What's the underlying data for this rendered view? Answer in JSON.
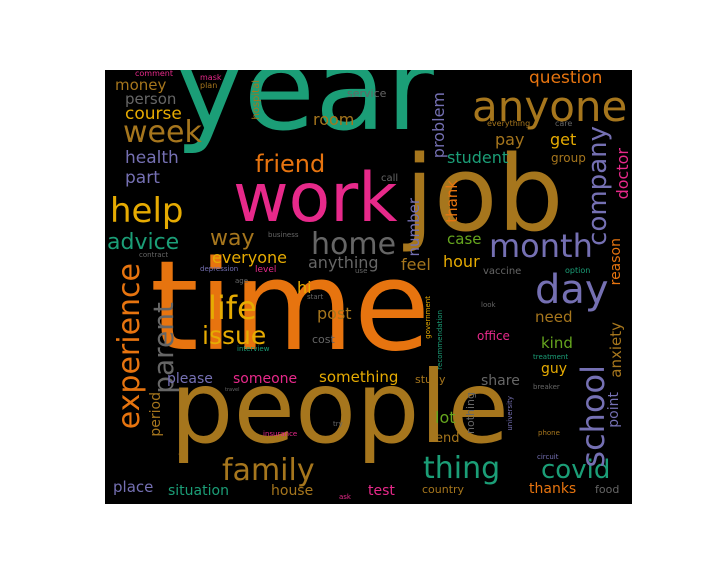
{
  "palette": {
    "orange": "#e7740f",
    "green": "#1b9e77",
    "pink": "#e7298a",
    "purple": "#7570b3",
    "gold": "#e6ab02",
    "olive": "#66a61e",
    "brown": "#a6761d",
    "grey": "#666666",
    "background": "#000000"
  },
  "words": [
    {
      "text": "time",
      "color": "#e7740f"
    },
    {
      "text": "year",
      "color": "#1b9e77"
    },
    {
      "text": "people",
      "color": "#a6761d"
    },
    {
      "text": "job",
      "color": "#a6761d"
    },
    {
      "text": "work",
      "color": "#e7298a"
    },
    {
      "text": "anyone",
      "color": "#a6761d"
    },
    {
      "text": "week",
      "color": "#a6761d"
    },
    {
      "text": "help",
      "color": "#e6ab02"
    },
    {
      "text": "home",
      "color": "#666666"
    },
    {
      "text": "month",
      "color": "#7570b3"
    },
    {
      "text": "day",
      "color": "#7570b3"
    },
    {
      "text": "life",
      "color": "#e6ab02"
    },
    {
      "text": "issue",
      "color": "#e6ab02"
    },
    {
      "text": "friend",
      "color": "#e7740f"
    },
    {
      "text": "family",
      "color": "#a6761d"
    },
    {
      "text": "thing",
      "color": "#1b9e77"
    },
    {
      "text": "covid",
      "color": "#1b9e77"
    },
    {
      "text": "experience",
      "color": "#e7740f"
    },
    {
      "text": "parent",
      "color": "#666666"
    },
    {
      "text": "school",
      "color": "#7570b3"
    },
    {
      "text": "company",
      "color": "#7570b3"
    },
    {
      "text": "advice",
      "color": "#1b9e77"
    },
    {
      "text": "way",
      "color": "#a6761d"
    },
    {
      "text": "question",
      "color": "#e7740f"
    },
    {
      "text": "course",
      "color": "#e6ab02"
    },
    {
      "text": "money",
      "color": "#a6761d"
    },
    {
      "text": "person",
      "color": "#666666"
    },
    {
      "text": "health",
      "color": "#7570b3"
    },
    {
      "text": "part",
      "color": "#7570b3"
    },
    {
      "text": "room",
      "color": "#a6761d"
    },
    {
      "text": "student",
      "color": "#1b9e77"
    },
    {
      "text": "pay",
      "color": "#a6761d"
    },
    {
      "text": "get",
      "color": "#e6ab02"
    },
    {
      "text": "doctor",
      "color": "#e7298a"
    },
    {
      "text": "group",
      "color": "#a6761d"
    },
    {
      "text": "problem",
      "color": "#7570b3"
    },
    {
      "text": "number",
      "color": "#7570b3"
    },
    {
      "text": "thank",
      "color": "#e7740f"
    },
    {
      "text": "case",
      "color": "#66a61e"
    },
    {
      "text": "hour",
      "color": "#e6ab02"
    },
    {
      "text": "feel",
      "color": "#a6761d"
    },
    {
      "text": "everyone",
      "color": "#e6ab02"
    },
    {
      "text": "anything",
      "color": "#666666"
    },
    {
      "text": "hi",
      "color": "#e6ab02"
    },
    {
      "text": "post",
      "color": "#a6761d"
    },
    {
      "text": "need",
      "color": "#a6761d"
    },
    {
      "text": "kind",
      "color": "#66a61e"
    },
    {
      "text": "guy",
      "color": "#e6ab02"
    },
    {
      "text": "reason",
      "color": "#e7740f"
    },
    {
      "text": "anxiety",
      "color": "#a6761d"
    },
    {
      "text": "point",
      "color": "#7570b3"
    },
    {
      "text": "please",
      "color": "#7570b3"
    },
    {
      "text": "someone",
      "color": "#e7298a"
    },
    {
      "text": "something",
      "color": "#e6ab02"
    },
    {
      "text": "share",
      "color": "#666666"
    },
    {
      "text": "lot",
      "color": "#66a61e"
    },
    {
      "text": "end",
      "color": "#a6761d"
    },
    {
      "text": "period",
      "color": "#a6761d"
    },
    {
      "text": "place",
      "color": "#7570b3"
    },
    {
      "text": "situation",
      "color": "#1b9e77"
    },
    {
      "text": "house",
      "color": "#a6761d"
    },
    {
      "text": "test",
      "color": "#e7298a"
    },
    {
      "text": "thanks",
      "color": "#e7740f"
    },
    {
      "text": "food",
      "color": "#666666"
    },
    {
      "text": "country",
      "color": "#a6761d"
    },
    {
      "text": "nothing",
      "color": "#666666"
    },
    {
      "text": "office",
      "color": "#e7298a"
    },
    {
      "text": "cost",
      "color": "#666666"
    },
    {
      "text": "study",
      "color": "#a6761d"
    },
    {
      "text": "service",
      "color": "#666666"
    },
    {
      "text": "hospital",
      "color": "#a6761d"
    },
    {
      "text": "call",
      "color": "#666666"
    },
    {
      "text": "everything",
      "color": "#a6761d"
    },
    {
      "text": "care",
      "color": "#666666"
    },
    {
      "text": "comment",
      "color": "#e7298a"
    },
    {
      "text": "mask",
      "color": "#e7298a"
    },
    {
      "text": "plan",
      "color": "#a6761d"
    },
    {
      "text": "business",
      "color": "#666666"
    },
    {
      "text": "contract",
      "color": "#666666"
    },
    {
      "text": "depression",
      "color": "#7570b3"
    },
    {
      "text": "level",
      "color": "#e7298a"
    },
    {
      "text": "age",
      "color": "#666666"
    },
    {
      "text": "use",
      "color": "#666666"
    },
    {
      "text": "start",
      "color": "#666666"
    },
    {
      "text": "vaccine",
      "color": "#666666"
    },
    {
      "text": "option",
      "color": "#1b9e77"
    },
    {
      "text": "interview",
      "color": "#1b9e77"
    },
    {
      "text": "government",
      "color": "#e6ab02"
    },
    {
      "text": "recommendation",
      "color": "#1b9e77"
    },
    {
      "text": "look",
      "color": "#666666"
    },
    {
      "text": "treatment",
      "color": "#1b9e77"
    },
    {
      "text": "breaker",
      "color": "#666666"
    },
    {
      "text": "circuit",
      "color": "#7570b3"
    },
    {
      "text": "phone",
      "color": "#a6761d"
    },
    {
      "text": "university",
      "color": "#7570b3"
    },
    {
      "text": "insurance",
      "color": "#e7298a"
    },
    {
      "text": "try",
      "color": "#666666"
    },
    {
      "text": "ask",
      "color": "#e7298a"
    },
    {
      "text": "advance",
      "color": "#a6761d"
    },
    {
      "text": "travel",
      "color": "#666666"
    }
  ]
}
